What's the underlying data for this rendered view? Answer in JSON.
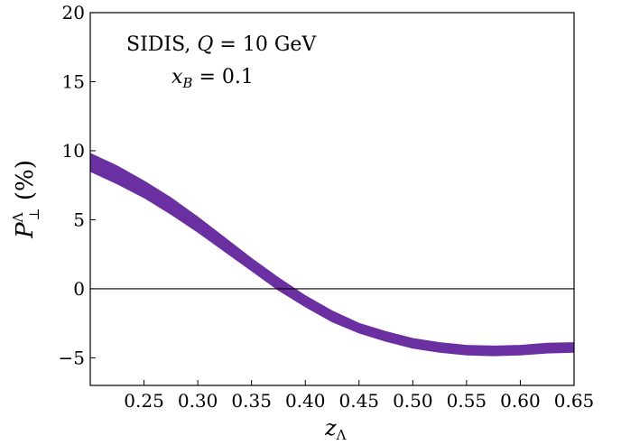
{
  "chart_data": {
    "type": "area",
    "xlim": [
      0.2,
      0.65
    ],
    "ylim": [
      -7,
      20
    ],
    "x_ticks": [
      {
        "value": 0.25,
        "label": "0.25"
      },
      {
        "value": 0.3,
        "label": "0.30"
      },
      {
        "value": 0.35,
        "label": "0.35"
      },
      {
        "value": 0.4,
        "label": "0.40"
      },
      {
        "value": 0.45,
        "label": "0.45"
      },
      {
        "value": 0.5,
        "label": "0.50"
      },
      {
        "value": 0.55,
        "label": "0.55"
      },
      {
        "value": 0.6,
        "label": "0.60"
      },
      {
        "value": 0.65,
        "label": "0.65"
      }
    ],
    "y_ticks": [
      {
        "value": -5,
        "label": "−5"
      },
      {
        "value": 0,
        "label": "0"
      },
      {
        "value": 5,
        "label": "5"
      },
      {
        "value": 10,
        "label": "10"
      },
      {
        "value": 15,
        "label": "15"
      },
      {
        "value": 20,
        "label": "20"
      }
    ],
    "xlabel": {
      "main": "z",
      "sub": "Λ"
    },
    "ylabel": {
      "main": "P",
      "sub": "⊥",
      "sup": "Λ",
      "rest": " (%)"
    },
    "annotations": [
      {
        "parts": [
          {
            "t": "SIDIS, "
          },
          {
            "t": "Q",
            "i": true
          },
          {
            "t": " = 10 GeV"
          }
        ]
      },
      {
        "parts": [
          {
            "t": "x",
            "i": true
          },
          {
            "t": "B",
            "i": true,
            "sub": true
          },
          {
            "t": " = 0.1"
          }
        ]
      }
    ],
    "reference_line": {
      "y": 0,
      "color": "#000000"
    },
    "band_color": "#6a2fa0",
    "series": [
      {
        "x": [
          0.2,
          0.225,
          0.25,
          0.275,
          0.3,
          0.325,
          0.35,
          0.375,
          0.4,
          0.425,
          0.45,
          0.475,
          0.5,
          0.525,
          0.55,
          0.575,
          0.6,
          0.625,
          0.65
        ],
        "lower": [
          8.5,
          7.6,
          6.6,
          5.4,
          4.1,
          2.7,
          1.3,
          -0.1,
          -1.3,
          -2.4,
          -3.2,
          -3.8,
          -4.3,
          -4.6,
          -4.8,
          -4.85,
          -4.8,
          -4.65,
          -4.6
        ],
        "upper": [
          9.8,
          8.9,
          7.8,
          6.6,
          5.2,
          3.7,
          2.2,
          0.8,
          -0.5,
          -1.6,
          -2.5,
          -3.1,
          -3.6,
          -3.9,
          -4.1,
          -4.15,
          -4.1,
          -3.95,
          -3.9
        ]
      }
    ]
  }
}
